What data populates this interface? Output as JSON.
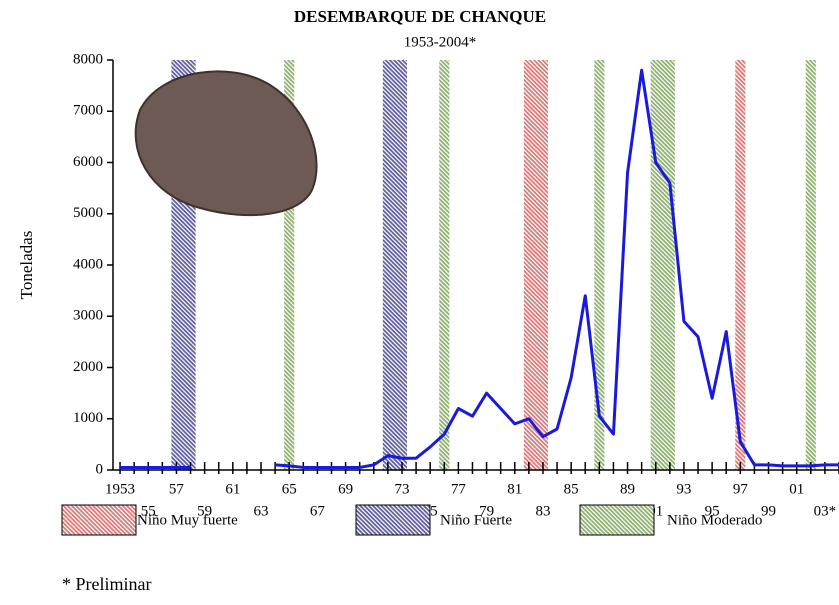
{
  "chart_data": {
    "type": "line",
    "title": "DESEMBARQUE DE CHANQUE",
    "subtitle": "1953-2004*",
    "y_label": "Toneladas",
    "footnote": "* Preliminar",
    "x": [
      1953,
      1954,
      1955,
      1956,
      1957,
      1958,
      1959,
      1960,
      1961,
      1962,
      1963,
      1964,
      1965,
      1966,
      1967,
      1968,
      1969,
      1970,
      1971,
      1972,
      1973,
      1974,
      1975,
      1976,
      1977,
      1978,
      1979,
      1980,
      1981,
      1982,
      1983,
      1984,
      1985,
      1986,
      1987,
      1988,
      1989,
      1990,
      1991,
      1992,
      1993,
      1994,
      1995,
      1996,
      1997,
      1998,
      1999,
      2000,
      2001,
      2002,
      2003,
      2004
    ],
    "series": [
      {
        "name": "Desembarque",
        "color": "#1a1adc",
        "values": [
          50,
          50,
          50,
          50,
          50,
          50,
          null,
          null,
          null,
          null,
          null,
          100,
          80,
          50,
          50,
          50,
          50,
          50,
          100,
          280,
          230,
          230,
          450,
          700,
          1200,
          1050,
          1500,
          1200,
          900,
          1000,
          650,
          800,
          1800,
          3400,
          1050,
          700,
          5800,
          7800,
          6000,
          5600,
          2900,
          2600,
          1400,
          2700,
          550,
          100,
          100,
          80,
          80,
          80,
          100,
          100
        ]
      }
    ],
    "bands": [
      {
        "name": "Niño Muy fuerte",
        "color": "#d77a7a",
        "periods": [
          [
            1982,
            1983
          ],
          [
            1997,
            1997
          ]
        ]
      },
      {
        "name": "Niño Fuerte",
        "color": "#5f5f9c",
        "periods": [
          [
            1957,
            1958
          ],
          [
            1972,
            1973
          ]
        ]
      },
      {
        "name": "Niño Moderado",
        "color": "#8fb071",
        "periods": [
          [
            1965,
            1965
          ],
          [
            1976,
            1976
          ],
          [
            1987,
            1987
          ],
          [
            1991,
            1992
          ],
          [
            2002,
            2002
          ]
        ]
      }
    ],
    "xlim": [
      1952.5,
      2004
    ],
    "xticks": [
      {
        "value": 1953,
        "label": "1953"
      },
      {
        "value": 1955,
        "label": "55"
      },
      {
        "value": 1957,
        "label": "57"
      },
      {
        "value": 1959,
        "label": "59"
      },
      {
        "value": 1961,
        "label": "61"
      },
      {
        "value": 1963,
        "label": "63"
      },
      {
        "value": 1965,
        "label": "65"
      },
      {
        "value": 1967,
        "label": "67"
      },
      {
        "value": 1969,
        "label": "69"
      },
      {
        "value": 1971,
        "label": "71"
      },
      {
        "value": 1973,
        "label": "73"
      },
      {
        "value": 1975,
        "label": "75"
      },
      {
        "value": 1977,
        "label": "77"
      },
      {
        "value": 1979,
        "label": "79"
      },
      {
        "value": 1981,
        "label": "81"
      },
      {
        "value": 1983,
        "label": "83"
      },
      {
        "value": 1985,
        "label": "85"
      },
      {
        "value": 1987,
        "label": "87"
      },
      {
        "value": 1989,
        "label": "89"
      },
      {
        "value": 1991,
        "label": "91"
      },
      {
        "value": 1993,
        "label": "93"
      },
      {
        "value": 1995,
        "label": "95"
      },
      {
        "value": 1997,
        "label": "97"
      },
      {
        "value": 1999,
        "label": "99"
      },
      {
        "value": 2001,
        "label": "01"
      },
      {
        "value": 2003,
        "label": "03*"
      }
    ],
    "ylim": [
      0,
      8000
    ],
    "yticks": [
      0,
      1000,
      2000,
      3000,
      4000,
      5000,
      6000,
      7000,
      8000
    ]
  }
}
